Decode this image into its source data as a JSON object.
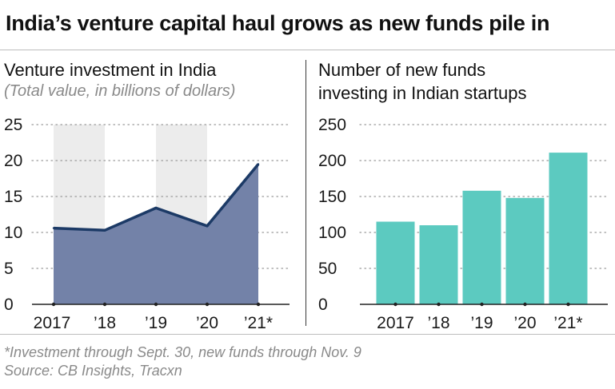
{
  "headline": "India’s venture capital haul grows as new funds pile in",
  "footnote": "*Investment through Sept. 30, new funds through Nov. 9",
  "source": "Source: CB Insights, Tracxn",
  "colors": {
    "area": "#7382a8",
    "line": "#1c3a66",
    "bars": "#5ccac0",
    "band": "#ececec",
    "grid": "#9a9a9a"
  },
  "chart_data": [
    {
      "type": "area",
      "title": "Venture investment in India",
      "subtitle": "(Total value, in billions of dollars)",
      "categories": [
        "2017",
        "’18",
        "’19",
        "’20",
        "’21*"
      ],
      "values": [
        10.6,
        10.3,
        13.4,
        10.9,
        19.5
      ],
      "ylim": [
        0,
        25
      ],
      "yticks": [
        "0",
        "5",
        "10",
        "15",
        "20",
        "25"
      ],
      "shaded_years": [
        "2017",
        "’19"
      ],
      "grid": true
    },
    {
      "type": "bar",
      "title_line1": "Number of new funds",
      "title_line2": "investing in Indian startups",
      "categories": [
        "2017",
        "’18",
        "’19",
        "’20",
        "’21*"
      ],
      "values": [
        115,
        110,
        158,
        148,
        211
      ],
      "ylim": [
        0,
        250
      ],
      "yticks": [
        "0",
        "50",
        "100",
        "150",
        "200",
        "250"
      ],
      "grid": true
    }
  ]
}
